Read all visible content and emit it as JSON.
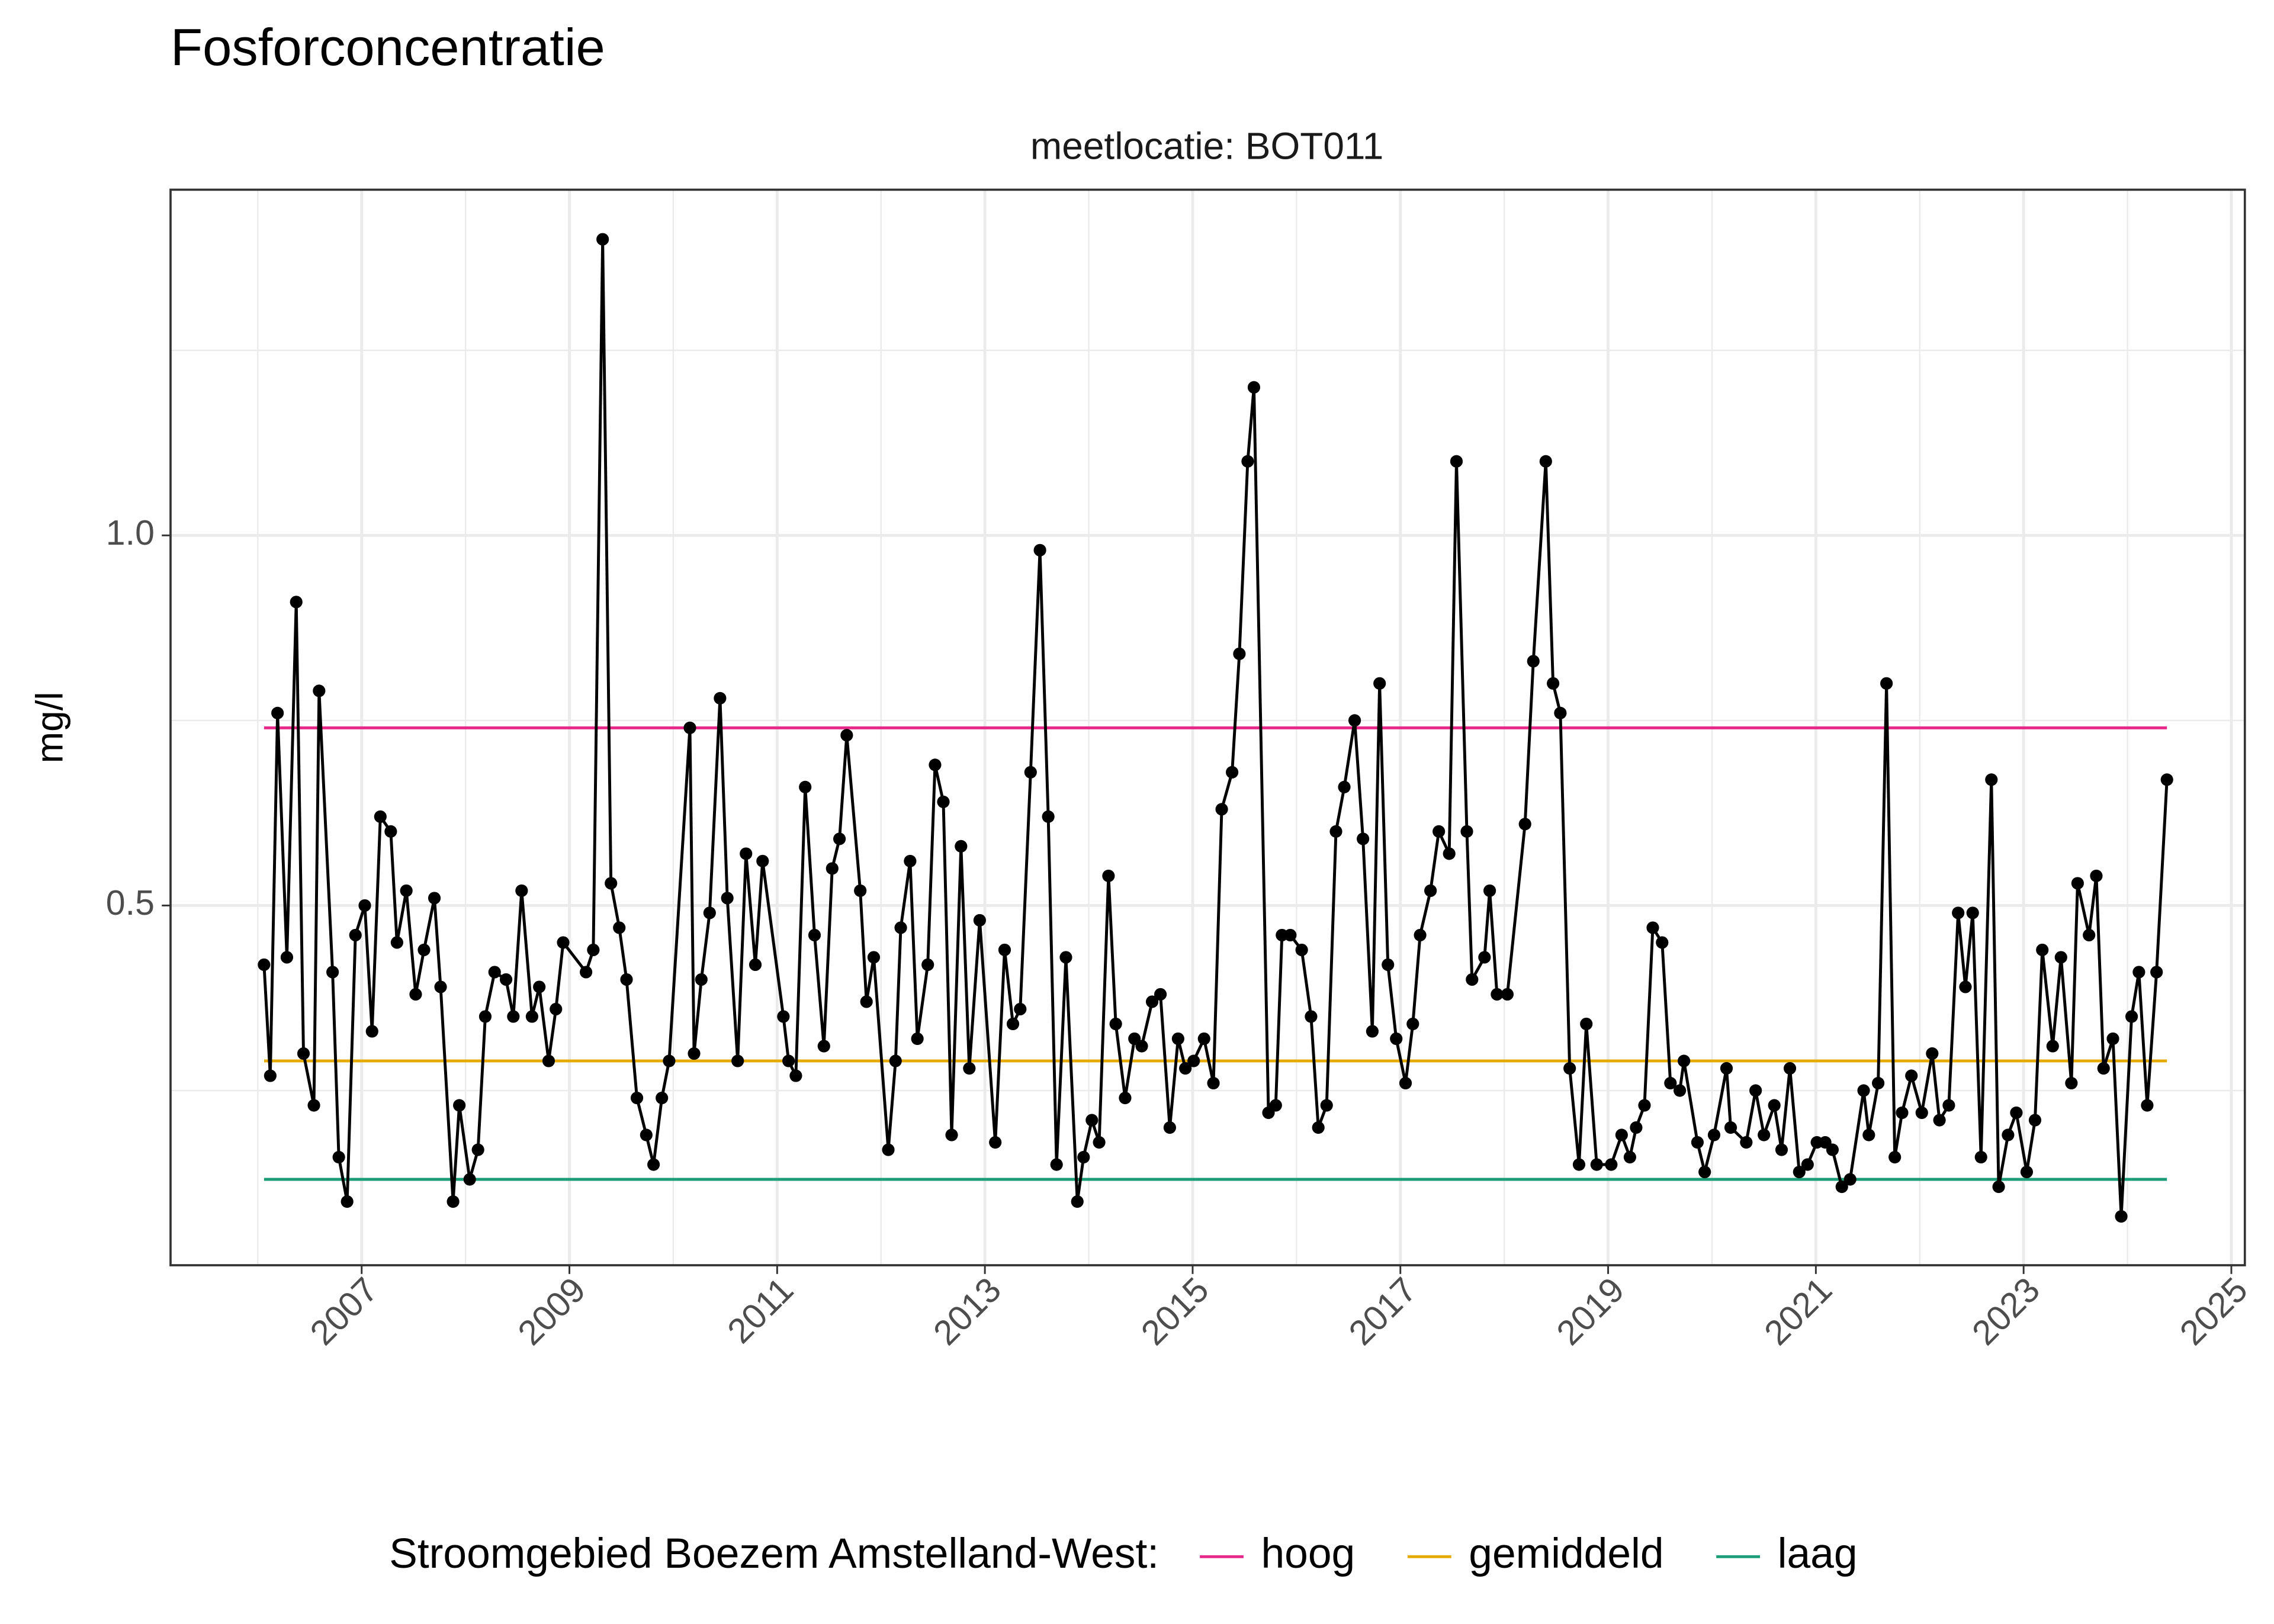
{
  "chart_data": {
    "type": "line",
    "title": "Fosforconcentratie",
    "facet_label": "meetlocatie: BOT011",
    "y_label": "mg/l",
    "color": "#000000",
    "x": [
      2006.06,
      2006.12,
      2006.19,
      2006.28,
      2006.37,
      2006.44,
      2006.54,
      2006.59,
      2006.72,
      2006.78,
      2006.86,
      2006.94,
      2007.03,
      2007.1,
      2007.18,
      2007.28,
      2007.34,
      2007.43,
      2007.52,
      2007.6,
      2007.7,
      2007.76,
      2007.88,
      2007.94,
      2008.04,
      2008.12,
      2008.19,
      2008.28,
      2008.39,
      2008.46,
      2008.54,
      2008.64,
      2008.71,
      2008.8,
      2008.87,
      2008.94,
      2009.16,
      2009.23,
      2009.32,
      2009.4,
      2009.48,
      2009.55,
      2009.65,
      2009.74,
      2009.81,
      2009.89,
      2009.96,
      2010.16,
      2010.2,
      2010.27,
      2010.35,
      2010.45,
      2010.52,
      2010.62,
      2010.7,
      2010.79,
      2010.86,
      2011.06,
      2011.11,
      2011.18,
      2011.27,
      2011.36,
      2011.45,
      2011.53,
      2011.6,
      2011.67,
      2011.8,
      2011.86,
      2011.93,
      2012.07,
      2012.14,
      2012.19,
      2012.28,
      2012.35,
      2012.45,
      2012.52,
      2012.6,
      2012.68,
      2012.77,
      2012.85,
      2012.95,
      2013.1,
      2013.19,
      2013.27,
      2013.34,
      2013.44,
      2013.53,
      2013.61,
      2013.69,
      2013.78,
      2013.89,
      2013.95,
      2014.03,
      2014.1,
      2014.19,
      2014.26,
      2014.35,
      2014.44,
      2014.51,
      2014.61,
      2014.69,
      2014.78,
      2014.86,
      2014.93,
      2015.01,
      2015.11,
      2015.2,
      2015.28,
      2015.38,
      2015.45,
      2015.53,
      2015.59,
      2015.73,
      2015.8,
      2015.86,
      2015.94,
      2016.05,
      2016.14,
      2016.21,
      2016.29,
      2016.38,
      2016.46,
      2016.56,
      2016.64,
      2016.73,
      2016.8,
      2016.88,
      2016.96,
      2017.05,
      2017.12,
      2017.19,
      2017.29,
      2017.37,
      2017.47,
      2017.54,
      2017.64,
      2017.69,
      2017.81,
      2017.86,
      2017.93,
      2018.03,
      2018.2,
      2018.28,
      2018.4,
      2018.47,
      2018.54,
      2018.63,
      2018.72,
      2018.79,
      2018.89,
      2019.03,
      2019.13,
      2019.21,
      2019.27,
      2019.35,
      2019.43,
      2019.52,
      2019.6,
      2019.69,
      2019.73,
      2019.86,
      2019.93,
      2020.02,
      2020.14,
      2020.18,
      2020.33,
      2020.42,
      2020.5,
      2020.6,
      2020.67,
      2020.75,
      2020.84,
      2020.92,
      2021.01,
      2021.09,
      2021.16,
      2021.25,
      2021.33,
      2021.46,
      2021.51,
      2021.6,
      2021.68,
      2021.76,
      2021.83,
      2021.92,
      2022.02,
      2022.12,
      2022.19,
      2022.28,
      2022.37,
      2022.44,
      2022.51,
      2022.59,
      2022.69,
      2022.76,
      2022.85,
      2022.93,
      2023.03,
      2023.11,
      2023.18,
      2023.28,
      2023.36,
      2023.46,
      2023.52,
      2023.63,
      2023.7,
      2023.77,
      2023.86,
      2023.94,
      2024.04,
      2024.11,
      2024.19,
      2024.28,
      2024.38
    ],
    "values": [
      0.42,
      0.27,
      0.76,
      0.43,
      0.91,
      0.3,
      0.23,
      0.79,
      0.41,
      0.16,
      0.1,
      0.46,
      0.5,
      0.33,
      0.62,
      0.6,
      0.45,
      0.52,
      0.38,
      0.44,
      0.51,
      0.39,
      0.1,
      0.23,
      0.13,
      0.17,
      0.35,
      0.41,
      0.4,
      0.35,
      0.52,
      0.35,
      0.39,
      0.29,
      0.36,
      0.45,
      0.41,
      0.44,
      1.4,
      0.53,
      0.47,
      0.4,
      0.24,
      0.19,
      0.15,
      0.24,
      0.29,
      0.74,
      0.3,
      0.4,
      0.49,
      0.78,
      0.51,
      0.29,
      0.57,
      0.42,
      0.56,
      0.35,
      0.29,
      0.27,
      0.66,
      0.46,
      0.31,
      0.55,
      0.59,
      0.73,
      0.52,
      0.37,
      0.43,
      0.17,
      0.29,
      0.47,
      0.56,
      0.32,
      0.42,
      0.69,
      0.64,
      0.19,
      0.58,
      0.28,
      0.48,
      0.18,
      0.44,
      0.34,
      0.36,
      0.68,
      0.98,
      0.62,
      0.15,
      0.43,
      0.1,
      0.16,
      0.21,
      0.18,
      0.54,
      0.34,
      0.24,
      0.32,
      0.31,
      0.37,
      0.38,
      0.2,
      0.32,
      0.28,
      0.29,
      0.32,
      0.26,
      0.63,
      0.68,
      0.84,
      1.1,
      1.2,
      0.22,
      0.23,
      0.46,
      0.46,
      0.44,
      0.35,
      0.2,
      0.23,
      0.6,
      0.66,
      0.75,
      0.59,
      0.33,
      0.8,
      0.42,
      0.32,
      0.26,
      0.34,
      0.46,
      0.52,
      0.6,
      0.57,
      1.1,
      0.6,
      0.4,
      0.43,
      0.52,
      0.38,
      0.38,
      0.61,
      0.83,
      1.1,
      0.8,
      0.76,
      0.28,
      0.15,
      0.34,
      0.15,
      0.15,
      0.19,
      0.16,
      0.2,
      0.23,
      0.47,
      0.45,
      0.26,
      0.25,
      0.29,
      0.18,
      0.14,
      0.19,
      0.28,
      0.2,
      0.18,
      0.25,
      0.19,
      0.23,
      0.17,
      0.28,
      0.14,
      0.15,
      0.18,
      0.18,
      0.17,
      0.12,
      0.13,
      0.25,
      0.19,
      0.26,
      0.8,
      0.16,
      0.22,
      0.27,
      0.22,
      0.3,
      0.21,
      0.23,
      0.49,
      0.39,
      0.49,
      0.16,
      0.67,
      0.12,
      0.19,
      0.22,
      0.14,
      0.21,
      0.44,
      0.31,
      0.43,
      0.26,
      0.53,
      0.46,
      0.54,
      0.28,
      0.32,
      0.08,
      0.35,
      0.41,
      0.23,
      0.41,
      0.67
    ],
    "reference_lines": [
      {
        "name": "hoog",
        "color": "#e7298a",
        "value": 0.74
      },
      {
        "name": "gemiddeld",
        "color": "#e6ab02",
        "value": 0.29
      },
      {
        "name": "laag",
        "color": "#1b9e77",
        "value": 0.13
      }
    ],
    "legend_title": "Stroomgebied Boezem Amstelland-West:",
    "legend": "bottom",
    "grid": true,
    "xlim": [
      2005.16,
      2025.13
    ],
    "xticks": [
      2007,
      2009,
      2011,
      2013,
      2015,
      2017,
      2019,
      2021,
      2023,
      2025
    ],
    "minor_xticks": [
      2006,
      2008,
      2010,
      2012,
      2014,
      2016,
      2018,
      2020,
      2022,
      2024
    ],
    "ylim": [
      0.014,
      1.467
    ],
    "yticks": [
      {
        "value": 0.5,
        "label": "0.5"
      },
      {
        "value": 1,
        "label": "1.0"
      }
    ],
    "minor_yticks": [
      0.25,
      0.75,
      1.25
    ]
  }
}
